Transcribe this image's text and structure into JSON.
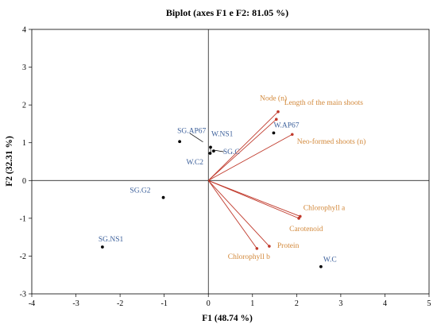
{
  "chart_data": {
    "type": "scatter",
    "title": "Biplot (axes F1 e F2: 81.05 %)",
    "xlabel": "F1 (48.74 %)",
    "ylabel": "F2 (32.31 %)",
    "xlim": [
      -4,
      5
    ],
    "ylim": [
      -3,
      4
    ],
    "xticks": [
      "-4",
      "-3",
      "-2",
      "-1",
      "0",
      "1",
      "2",
      "3",
      "4",
      "5"
    ],
    "yticks": [
      "-3",
      "-2",
      "-1",
      "0",
      "1",
      "2",
      "3",
      "4"
    ],
    "grid": false,
    "observations": [
      {
        "label": "SG.AP67",
        "x": -0.65,
        "y": 1.03
      },
      {
        "label": "W.NS1",
        "x": 0.05,
        "y": 0.88
      },
      {
        "label": "SG.C",
        "x": 0.12,
        "y": 0.78
      },
      {
        "label": "W.C2",
        "x": 0.04,
        "y": 0.72
      },
      {
        "label": "W.AP67",
        "x": 1.48,
        "y": 1.26
      },
      {
        "label": "SG.G2",
        "x": -1.02,
        "y": -0.45
      },
      {
        "label": "SG.NS1",
        "x": -2.4,
        "y": -1.76
      },
      {
        "label": "W.C",
        "x": 2.55,
        "y": -2.28
      }
    ],
    "variables": [
      {
        "label": "Node (n)",
        "x": 1.58,
        "y": 1.82
      },
      {
        "label": "Length of the main shoots",
        "x": 1.54,
        "y": 1.62
      },
      {
        "label": "Neo-formed shoots (n)",
        "x": 1.9,
        "y": 1.22
      },
      {
        "label": "Chlorophyll a",
        "x": 2.08,
        "y": -0.95
      },
      {
        "label": "Carotenoid",
        "x": 2.05,
        "y": -1.0
      },
      {
        "label": "Protein",
        "x": 1.38,
        "y": -1.74
      },
      {
        "label": "Chlorophyll b",
        "x": 1.1,
        "y": -1.8
      }
    ],
    "colors": {
      "observations": "#3b5f9a",
      "points": "#000000",
      "variables": "#d2883a",
      "vectors": "#c0392b"
    }
  }
}
